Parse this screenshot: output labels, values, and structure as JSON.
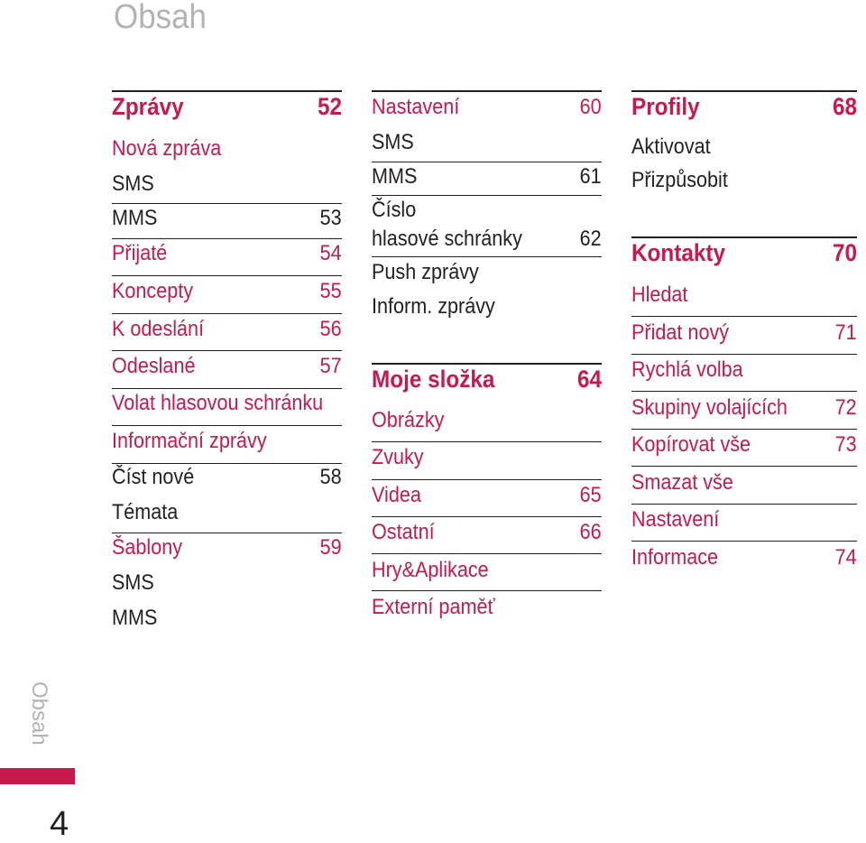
{
  "header": {
    "title": "Obsah"
  },
  "columns": [
    {
      "entries": [
        {
          "text": "Zprávy",
          "page": "52"
        },
        {
          "text": "Nová zpráva",
          "page": ""
        },
        {
          "text": "SMS",
          "page": ""
        },
        {
          "text": "MMS",
          "page": "53"
        },
        {
          "text": "Přijaté",
          "page": "54"
        },
        {
          "text": "Koncepty",
          "page": "55"
        },
        {
          "text": "K odeslání",
          "page": "56"
        },
        {
          "text": "Odeslané",
          "page": "57"
        },
        {
          "text": "Volat hlasovou schránku",
          "page": ""
        },
        {
          "text": "Informační zprávy",
          "page": ""
        },
        {
          "text": "Číst nové",
          "page": "58"
        },
        {
          "text": "Témata",
          "page": ""
        },
        {
          "text": "Šablony",
          "page": "59"
        },
        {
          "text": "SMS",
          "page": ""
        },
        {
          "text": "MMS",
          "page": ""
        }
      ]
    },
    {
      "entries": [
        {
          "text": "Nastavení",
          "page": "60"
        },
        {
          "text": "SMS",
          "page": ""
        },
        {
          "text": "MMS",
          "page": "61"
        },
        {
          "text": "Číslo",
          "page": ""
        },
        {
          "text": "hlasové schránky",
          "page": "62"
        },
        {
          "text": "Push zprávy",
          "page": ""
        },
        {
          "text": "Inform. zprávy",
          "page": ""
        },
        {
          "text": "Moje složka",
          "page": "64"
        },
        {
          "text": "Obrázky",
          "page": ""
        },
        {
          "text": "Zvuky",
          "page": ""
        },
        {
          "text": "Videa",
          "page": "65"
        },
        {
          "text": "Ostatní",
          "page": "66"
        },
        {
          "text": "Hry&Aplikace",
          "page": ""
        },
        {
          "text": "Externí paměť",
          "page": ""
        }
      ]
    },
    {
      "entries": [
        {
          "text": "Profily",
          "page": "68"
        },
        {
          "text": "Aktivovat",
          "page": ""
        },
        {
          "text": "Přizpůsobit",
          "page": ""
        },
        {
          "text": "Kontakty",
          "page": "70"
        },
        {
          "text": "Hledat",
          "page": ""
        },
        {
          "text": "Přidat nový",
          "page": "71"
        },
        {
          "text": "Rychlá volba",
          "page": ""
        },
        {
          "text": "Skupiny volajících",
          "page": "72"
        },
        {
          "text": "Kopírovat vše",
          "page": "73"
        },
        {
          "text": "Smazat vše",
          "page": ""
        },
        {
          "text": "Nastavení",
          "page": ""
        },
        {
          "text": "Informace",
          "page": "74"
        }
      ]
    }
  ],
  "side_label": "Obsah",
  "page_number": "4",
  "colors": {
    "accent": "#c8194f",
    "text": "#231f20",
    "muted": "#b3b3b3"
  }
}
